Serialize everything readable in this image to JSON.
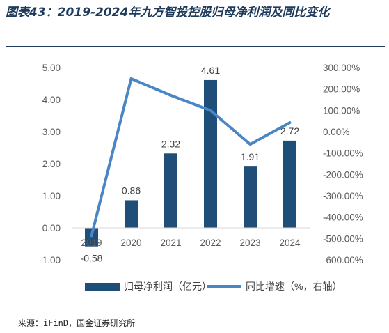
{
  "title": "图表43：2019-2024年九方智投控股归母净利润及同比变化",
  "source": "来源：iFinD，国金证券研究所",
  "chart_data": {
    "type": "bar+line",
    "categories": [
      "2019",
      "2020",
      "2021",
      "2022",
      "2023",
      "2024"
    ],
    "series": [
      {
        "name": "归母净利润（亿元）",
        "type": "bar",
        "axis": "left",
        "values": [
          -0.58,
          0.86,
          2.32,
          4.61,
          1.91,
          2.72
        ],
        "labels": [
          "-0.58",
          "0.86",
          "2.32",
          "4.61",
          "1.91",
          "2.72"
        ],
        "color": "#1f4e79"
      },
      {
        "name": "同比增速（%，右轴）",
        "type": "line",
        "axis": "right",
        "values": [
          -487,
          248,
          170,
          99,
          -59,
          42
        ],
        "color": "#4a86c5"
      }
    ],
    "y_left": {
      "ylim": [
        -1.0,
        5.0
      ],
      "ticks": [
        5,
        4,
        3,
        2,
        1,
        0,
        -1
      ],
      "tick_labels": [
        "5.00",
        "4.00",
        "3.00",
        "2.00",
        "1.00",
        "0.00",
        "-1.00"
      ]
    },
    "y_right": {
      "ylim": [
        -600,
        300
      ],
      "ticks": [
        300,
        200,
        100,
        0,
        -100,
        -200,
        -300,
        -400,
        -500,
        -600
      ],
      "tick_labels": [
        "300.00%",
        "200.00%",
        "100.00%",
        "0.00%",
        "-100.00%",
        "-200.00%",
        "-300.00%",
        "-400.00%",
        "-500.00%",
        "-600.00%"
      ]
    },
    "legend_placement": "bottom",
    "grid": false
  }
}
